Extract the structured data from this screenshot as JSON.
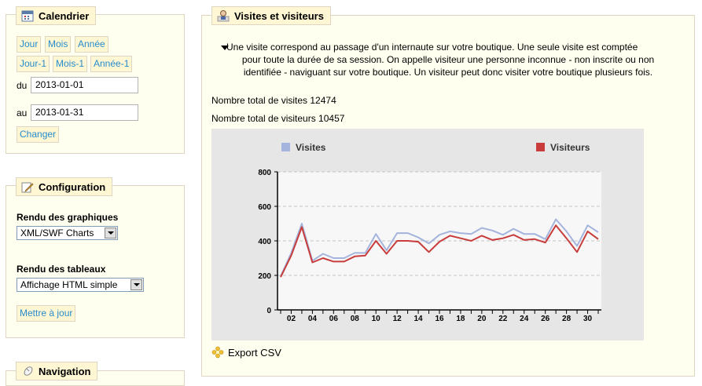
{
  "calendar": {
    "title": "Calendrier",
    "buttons": [
      "Jour",
      "Mois",
      "Année",
      "Jour-1",
      "Mois-1",
      "Année-1"
    ],
    "from_label": "du",
    "from_value": "2013-01-01",
    "to_label": "au",
    "to_value": "2013-01-31",
    "change_button": "Changer"
  },
  "configuration": {
    "title": "Configuration",
    "charts_label": "Rendu des graphiques",
    "charts_value": "XML/SWF Charts",
    "tables_label": "Rendu des tableaux",
    "tables_value": "Affichage HTML simple",
    "update_button": "Mettre à jour"
  },
  "navigation": {
    "title": "Navigation"
  },
  "main": {
    "title": "Visites et visiteurs",
    "description_lines": [
      "Une visite correspond au passage d'un internaute sur votre boutique. Une seule visite est comptée",
      "pour toute la durée de sa session. On appelle visiteur une personne inconnue - non inscrite ou non",
      "identifiée - naviguant sur votre boutique. Un visiteur peut donc visiter votre boutique plusieurs fois."
    ],
    "total_visits": "Nombre total de visites 12474",
    "total_visitors": "Nombre total de visiteurs 10457",
    "export_label": "Export CSV"
  },
  "chart_data": {
    "type": "line",
    "x": [
      1,
      2,
      3,
      4,
      5,
      6,
      7,
      8,
      9,
      10,
      11,
      12,
      13,
      14,
      15,
      16,
      17,
      18,
      19,
      20,
      21,
      22,
      23,
      24,
      25,
      26,
      27,
      28,
      29,
      30,
      31
    ],
    "x_tick_labels": [
      "02",
      "04",
      "06",
      "08",
      "10",
      "12",
      "14",
      "16",
      "18",
      "20",
      "22",
      "24",
      "26",
      "28",
      "30"
    ],
    "y_tick_labels": [
      "0",
      "200",
      "400",
      "600",
      "800"
    ],
    "ylim": [
      0,
      800
    ],
    "grid": true,
    "legend_placement": "top",
    "series": [
      {
        "name": "Visites",
        "color": "#a4b4dc",
        "values": [
          195,
          330,
          500,
          285,
          325,
          300,
          300,
          330,
          330,
          440,
          345,
          445,
          445,
          420,
          385,
          435,
          455,
          445,
          440,
          475,
          460,
          435,
          470,
          440,
          440,
          410,
          525,
          455,
          370,
          490,
          450
        ]
      },
      {
        "name": "Visiteurs",
        "color": "#c83c3c",
        "values": [
          190,
          315,
          480,
          275,
          300,
          280,
          280,
          310,
          315,
          400,
          325,
          400,
          400,
          395,
          335,
          395,
          430,
          415,
          400,
          430,
          405,
          415,
          435,
          405,
          410,
          390,
          490,
          415,
          335,
          455,
          410
        ]
      }
    ]
  }
}
